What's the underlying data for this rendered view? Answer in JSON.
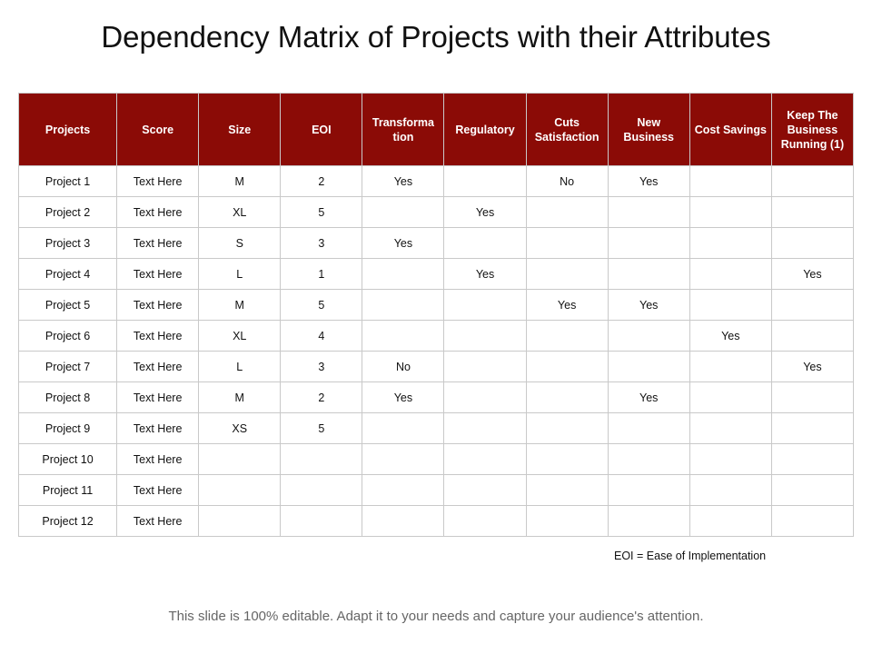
{
  "title": "Dependency Matrix of Projects with their Attributes",
  "table": {
    "headers": [
      "Projects",
      "Score",
      "Size",
      "EOI",
      "Transforma tion",
      "Regulatory",
      "Cuts Satisfaction",
      "New Business",
      "Cost Savings",
      "Keep The Business Running (1)"
    ],
    "rows": [
      [
        "Project 1",
        "Text Here",
        "M",
        "2",
        "Yes",
        "",
        "No",
        "Yes",
        "",
        ""
      ],
      [
        "Project 2",
        "Text Here",
        "XL",
        "5",
        "",
        "Yes",
        "",
        "",
        "",
        ""
      ],
      [
        "Project 3",
        "Text Here",
        "S",
        "3",
        "Yes",
        "",
        "",
        "",
        "",
        ""
      ],
      [
        "Project 4",
        "Text Here",
        "L",
        "1",
        "",
        "Yes",
        "",
        "",
        "",
        "Yes"
      ],
      [
        "Project 5",
        "Text Here",
        "M",
        "5",
        "",
        "",
        "Yes",
        "Yes",
        "",
        ""
      ],
      [
        "Project 6",
        "Text Here",
        "XL",
        "4",
        "",
        "",
        "",
        "",
        "Yes",
        ""
      ],
      [
        "Project 7",
        "Text Here",
        "L",
        "3",
        "No",
        "",
        "",
        "",
        "",
        "Yes"
      ],
      [
        "Project 8",
        "Text Here",
        "M",
        "2",
        "Yes",
        "",
        "",
        "Yes",
        "",
        ""
      ],
      [
        "Project 9",
        "Text Here",
        "XS",
        "5",
        "",
        "",
        "",
        "",
        "",
        ""
      ],
      [
        "Project 10",
        "Text Here",
        "",
        "",
        "",
        "",
        "",
        "",
        "",
        ""
      ],
      [
        "Project 11",
        "Text Here",
        "",
        "",
        "",
        "",
        "",
        "",
        "",
        ""
      ],
      [
        "Project 12",
        "Text Here",
        "",
        "",
        "",
        "",
        "",
        "",
        "",
        ""
      ]
    ]
  },
  "footnote": "EOI = Ease of Implementation",
  "footer": "This slide is 100% editable. Adapt it to your needs and capture your audience's attention.",
  "colors": {
    "header_bg": "#8b0b06",
    "header_text": "#ffffff",
    "grid": "#c9c9c9",
    "footer_text": "#666666"
  }
}
